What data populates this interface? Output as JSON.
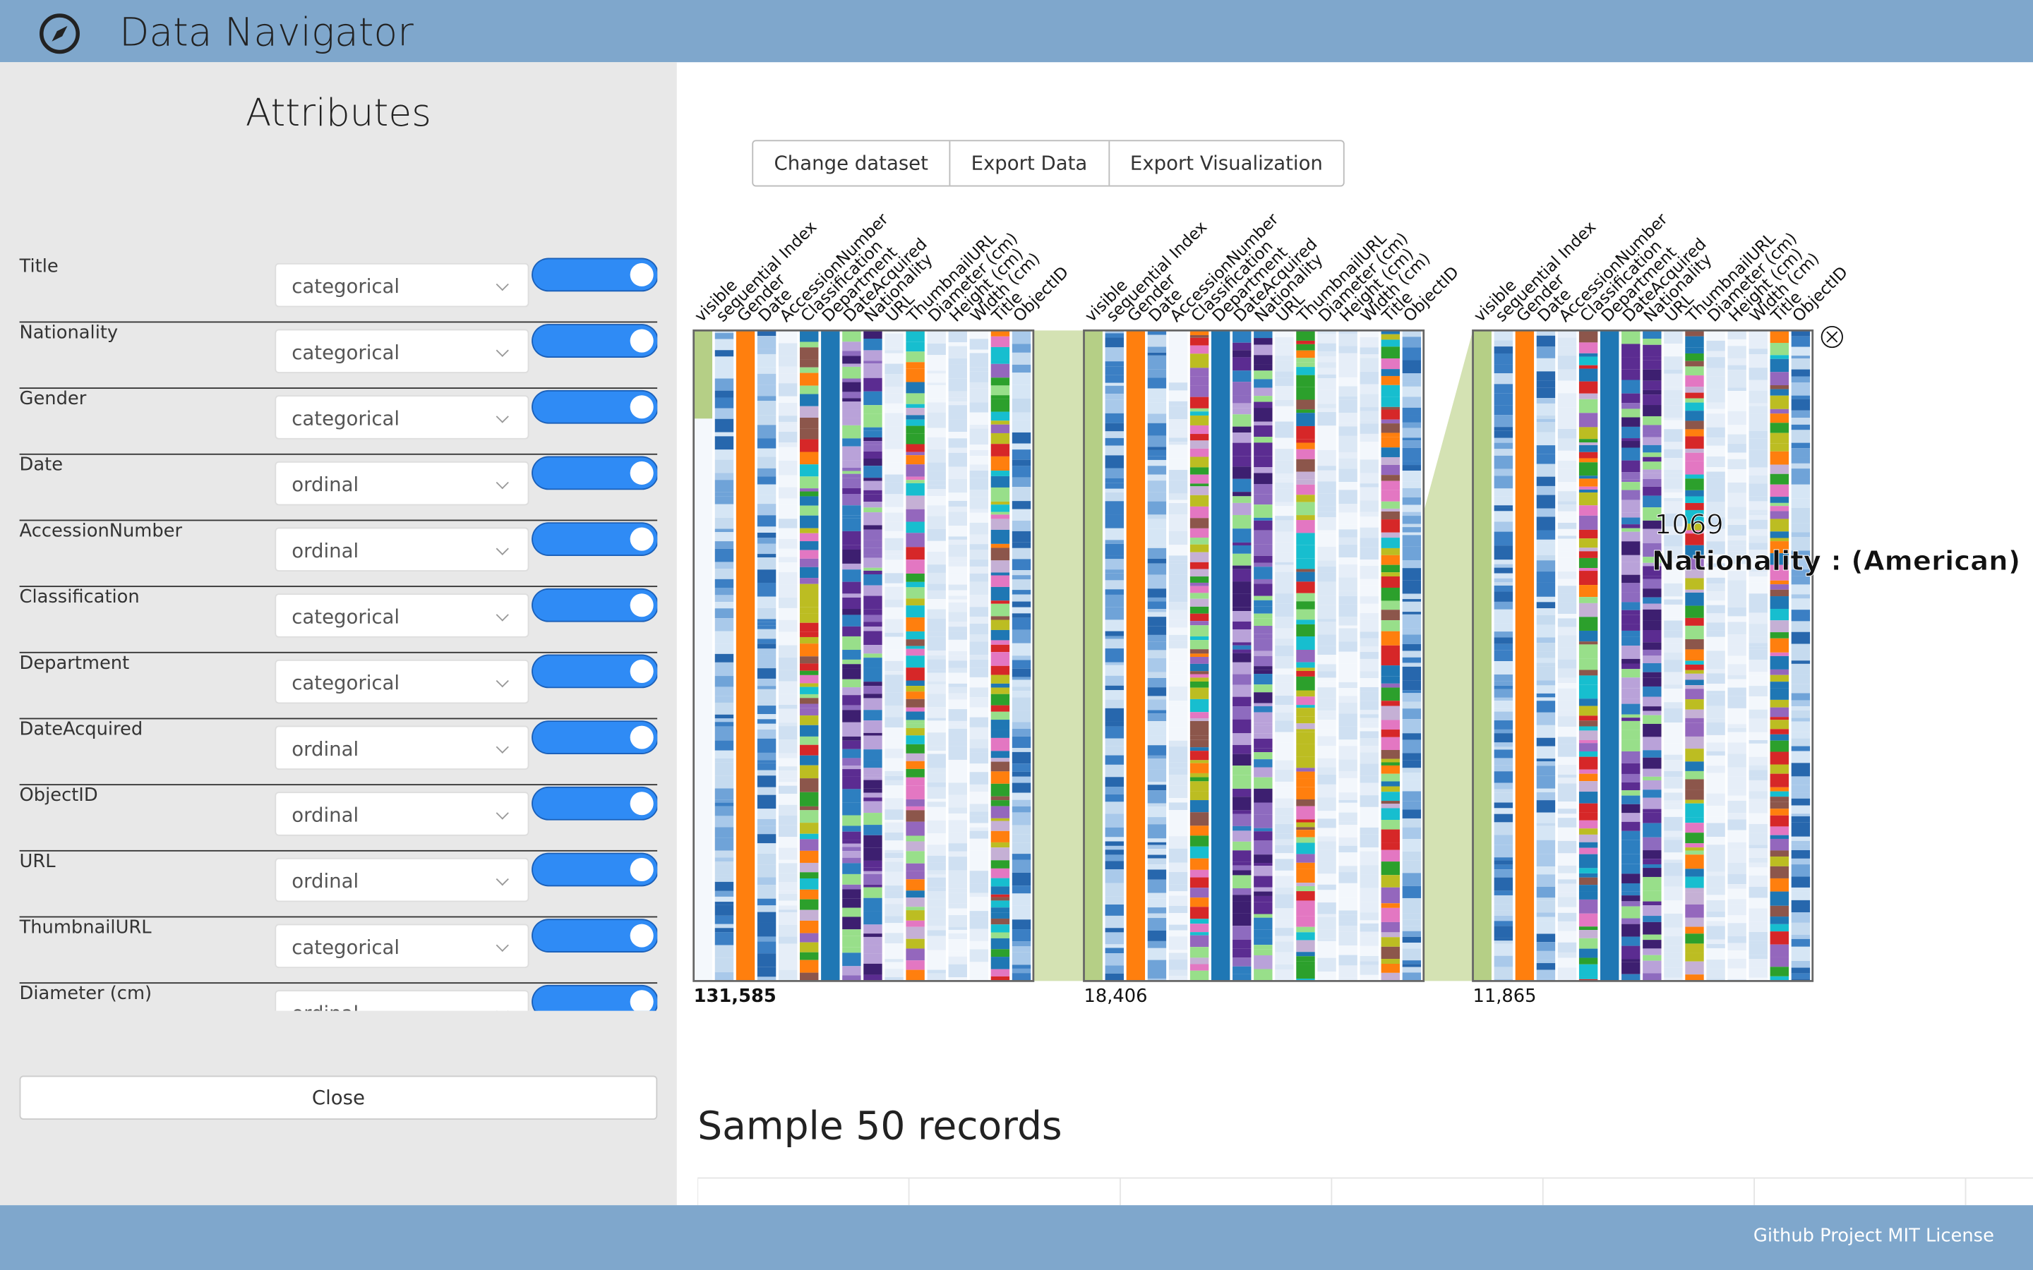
{
  "header": {
    "title": "Data Navigator"
  },
  "sidebar": {
    "title": "Attributes",
    "attributes": [
      {
        "name": "Title",
        "type": "categorical",
        "enabled": true
      },
      {
        "name": "Nationality",
        "type": "categorical",
        "enabled": true
      },
      {
        "name": "Gender",
        "type": "categorical",
        "enabled": true
      },
      {
        "name": "Date",
        "type": "ordinal",
        "enabled": true
      },
      {
        "name": "AccessionNumber",
        "type": "ordinal",
        "enabled": true
      },
      {
        "name": "Classification",
        "type": "categorical",
        "enabled": true
      },
      {
        "name": "Department",
        "type": "categorical",
        "enabled": true
      },
      {
        "name": "DateAcquired",
        "type": "ordinal",
        "enabled": true
      },
      {
        "name": "ObjectID",
        "type": "ordinal",
        "enabled": true
      },
      {
        "name": "URL",
        "type": "ordinal",
        "enabled": true
      },
      {
        "name": "ThumbnailURL",
        "type": "categorical",
        "enabled": true
      },
      {
        "name": "Diameter (cm)",
        "type": "ordinal",
        "enabled": true
      }
    ],
    "close": "Close"
  },
  "toolbar": {
    "buttons": [
      "Change dataset",
      "Export Data",
      "Export Visualization"
    ]
  },
  "navigator": {
    "columns": [
      "visible",
      "sequential Index",
      "Gender",
      "Date",
      "AccessionNumber",
      "Classification",
      "Department",
      "DateAcquired",
      "Nationality",
      "URL",
      "ThumbnailURL",
      "Diameter (cm)",
      "Height (cm)",
      "Width (cm)",
      "Title",
      "ObjectID"
    ],
    "panels": [
      {
        "count": "131,585"
      },
      {
        "count": "18,406"
      },
      {
        "count": "11,865"
      }
    ],
    "tooltip": {
      "value": "1069",
      "label": "Nationality : (American)"
    }
  },
  "sample": {
    "title": "Sample 50 records"
  },
  "footer": {
    "text": "Github Project MIT License"
  }
}
